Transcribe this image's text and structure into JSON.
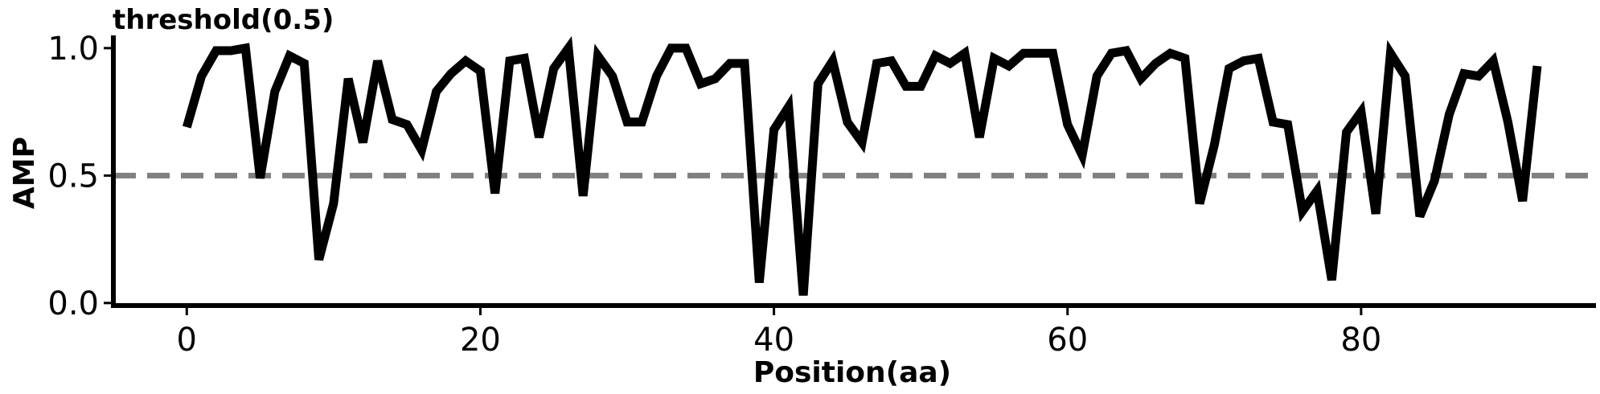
{
  "chart_data": {
    "type": "line",
    "annotation": "threshold(0.5)",
    "xlabel": "Position(aa)",
    "ylabel": "AMP",
    "xlim": [
      -5,
      96
    ],
    "ylim": [
      -0.01,
      1.05
    ],
    "xticks": [
      0,
      20,
      40,
      60,
      80
    ],
    "xtick_labels": [
      "0",
      "20",
      "40",
      "60",
      "80"
    ],
    "yticks": [
      0.0,
      0.5,
      1.0
    ],
    "ytick_labels": [
      "0.0",
      "0.5",
      "1.0"
    ],
    "threshold": 0.5,
    "series": [
      {
        "x": [
          0,
          1,
          2,
          3,
          4,
          5,
          6,
          7,
          8,
          9,
          10,
          11,
          12,
          13,
          14,
          15,
          16,
          17,
          18,
          19,
          20,
          21,
          22,
          23,
          24,
          25,
          26,
          27,
          28,
          29,
          30,
          31,
          32,
          33,
          34,
          35,
          36,
          37,
          38,
          39,
          40,
          41,
          42,
          43,
          44,
          45,
          46,
          47,
          48,
          49,
          50,
          51,
          52,
          53,
          54,
          55,
          56,
          57,
          58,
          59,
          60,
          61,
          62,
          63,
          64,
          65,
          66,
          67,
          68,
          69,
          70,
          71,
          72,
          73,
          74,
          75,
          76,
          77,
          78,
          79,
          80,
          81,
          82,
          83,
          84,
          85,
          86,
          87,
          88,
          89,
          90,
          91,
          92
        ],
        "values": [
          0.69,
          0.89,
          0.99,
          0.99,
          1.0,
          0.49,
          0.83,
          0.97,
          0.94,
          0.17,
          0.39,
          0.88,
          0.63,
          0.95,
          0.72,
          0.7,
          0.6,
          0.83,
          0.9,
          0.95,
          0.91,
          0.43,
          0.95,
          0.96,
          0.65,
          0.92,
          1.0,
          0.42,
          0.97,
          0.89,
          0.71,
          0.71,
          0.89,
          1.0,
          1.0,
          0.86,
          0.88,
          0.94,
          0.94,
          0.08,
          0.68,
          0.77,
          0.03,
          0.86,
          0.95,
          0.71,
          0.63,
          0.94,
          0.95,
          0.85,
          0.85,
          0.97,
          0.94,
          0.98,
          0.65,
          0.96,
          0.93,
          0.98,
          0.98,
          0.98,
          0.7,
          0.58,
          0.89,
          0.98,
          0.99,
          0.88,
          0.94,
          0.98,
          0.96,
          0.39,
          0.62,
          0.92,
          0.95,
          0.96,
          0.71,
          0.7,
          0.36,
          0.44,
          0.09,
          0.67,
          0.75,
          0.35,
          0.98,
          0.89,
          0.34,
          0.48,
          0.74,
          0.9,
          0.89,
          0.95,
          0.71,
          0.4,
          0.93
        ]
      }
    ],
    "colors": {
      "line": "#000000",
      "threshold": "#808080",
      "axes": "#000000"
    },
    "grid": false,
    "legend": "none"
  }
}
